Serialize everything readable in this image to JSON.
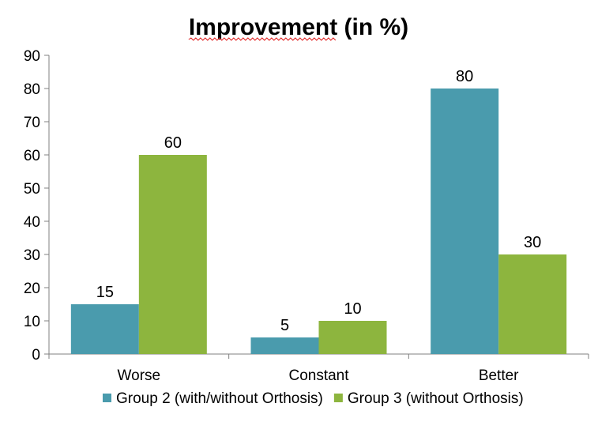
{
  "chart_data": {
    "type": "bar",
    "title": "Improvement (in %)",
    "categories": [
      "Worse",
      "Constant",
      "Better"
    ],
    "series": [
      {
        "name": "Group 2 (with/without Orthosis)",
        "values": [
          15,
          5,
          80
        ],
        "color": "#4a9bad"
      },
      {
        "name": "Group 3 (without Orthosis)",
        "values": [
          60,
          10,
          30
        ],
        "color": "#8db53e"
      }
    ],
    "ylim": [
      0,
      90
    ],
    "yticks": [
      0,
      10,
      20,
      30,
      40,
      50,
      60,
      70,
      80,
      90
    ],
    "grid": false,
    "legend_position": "bottom"
  }
}
